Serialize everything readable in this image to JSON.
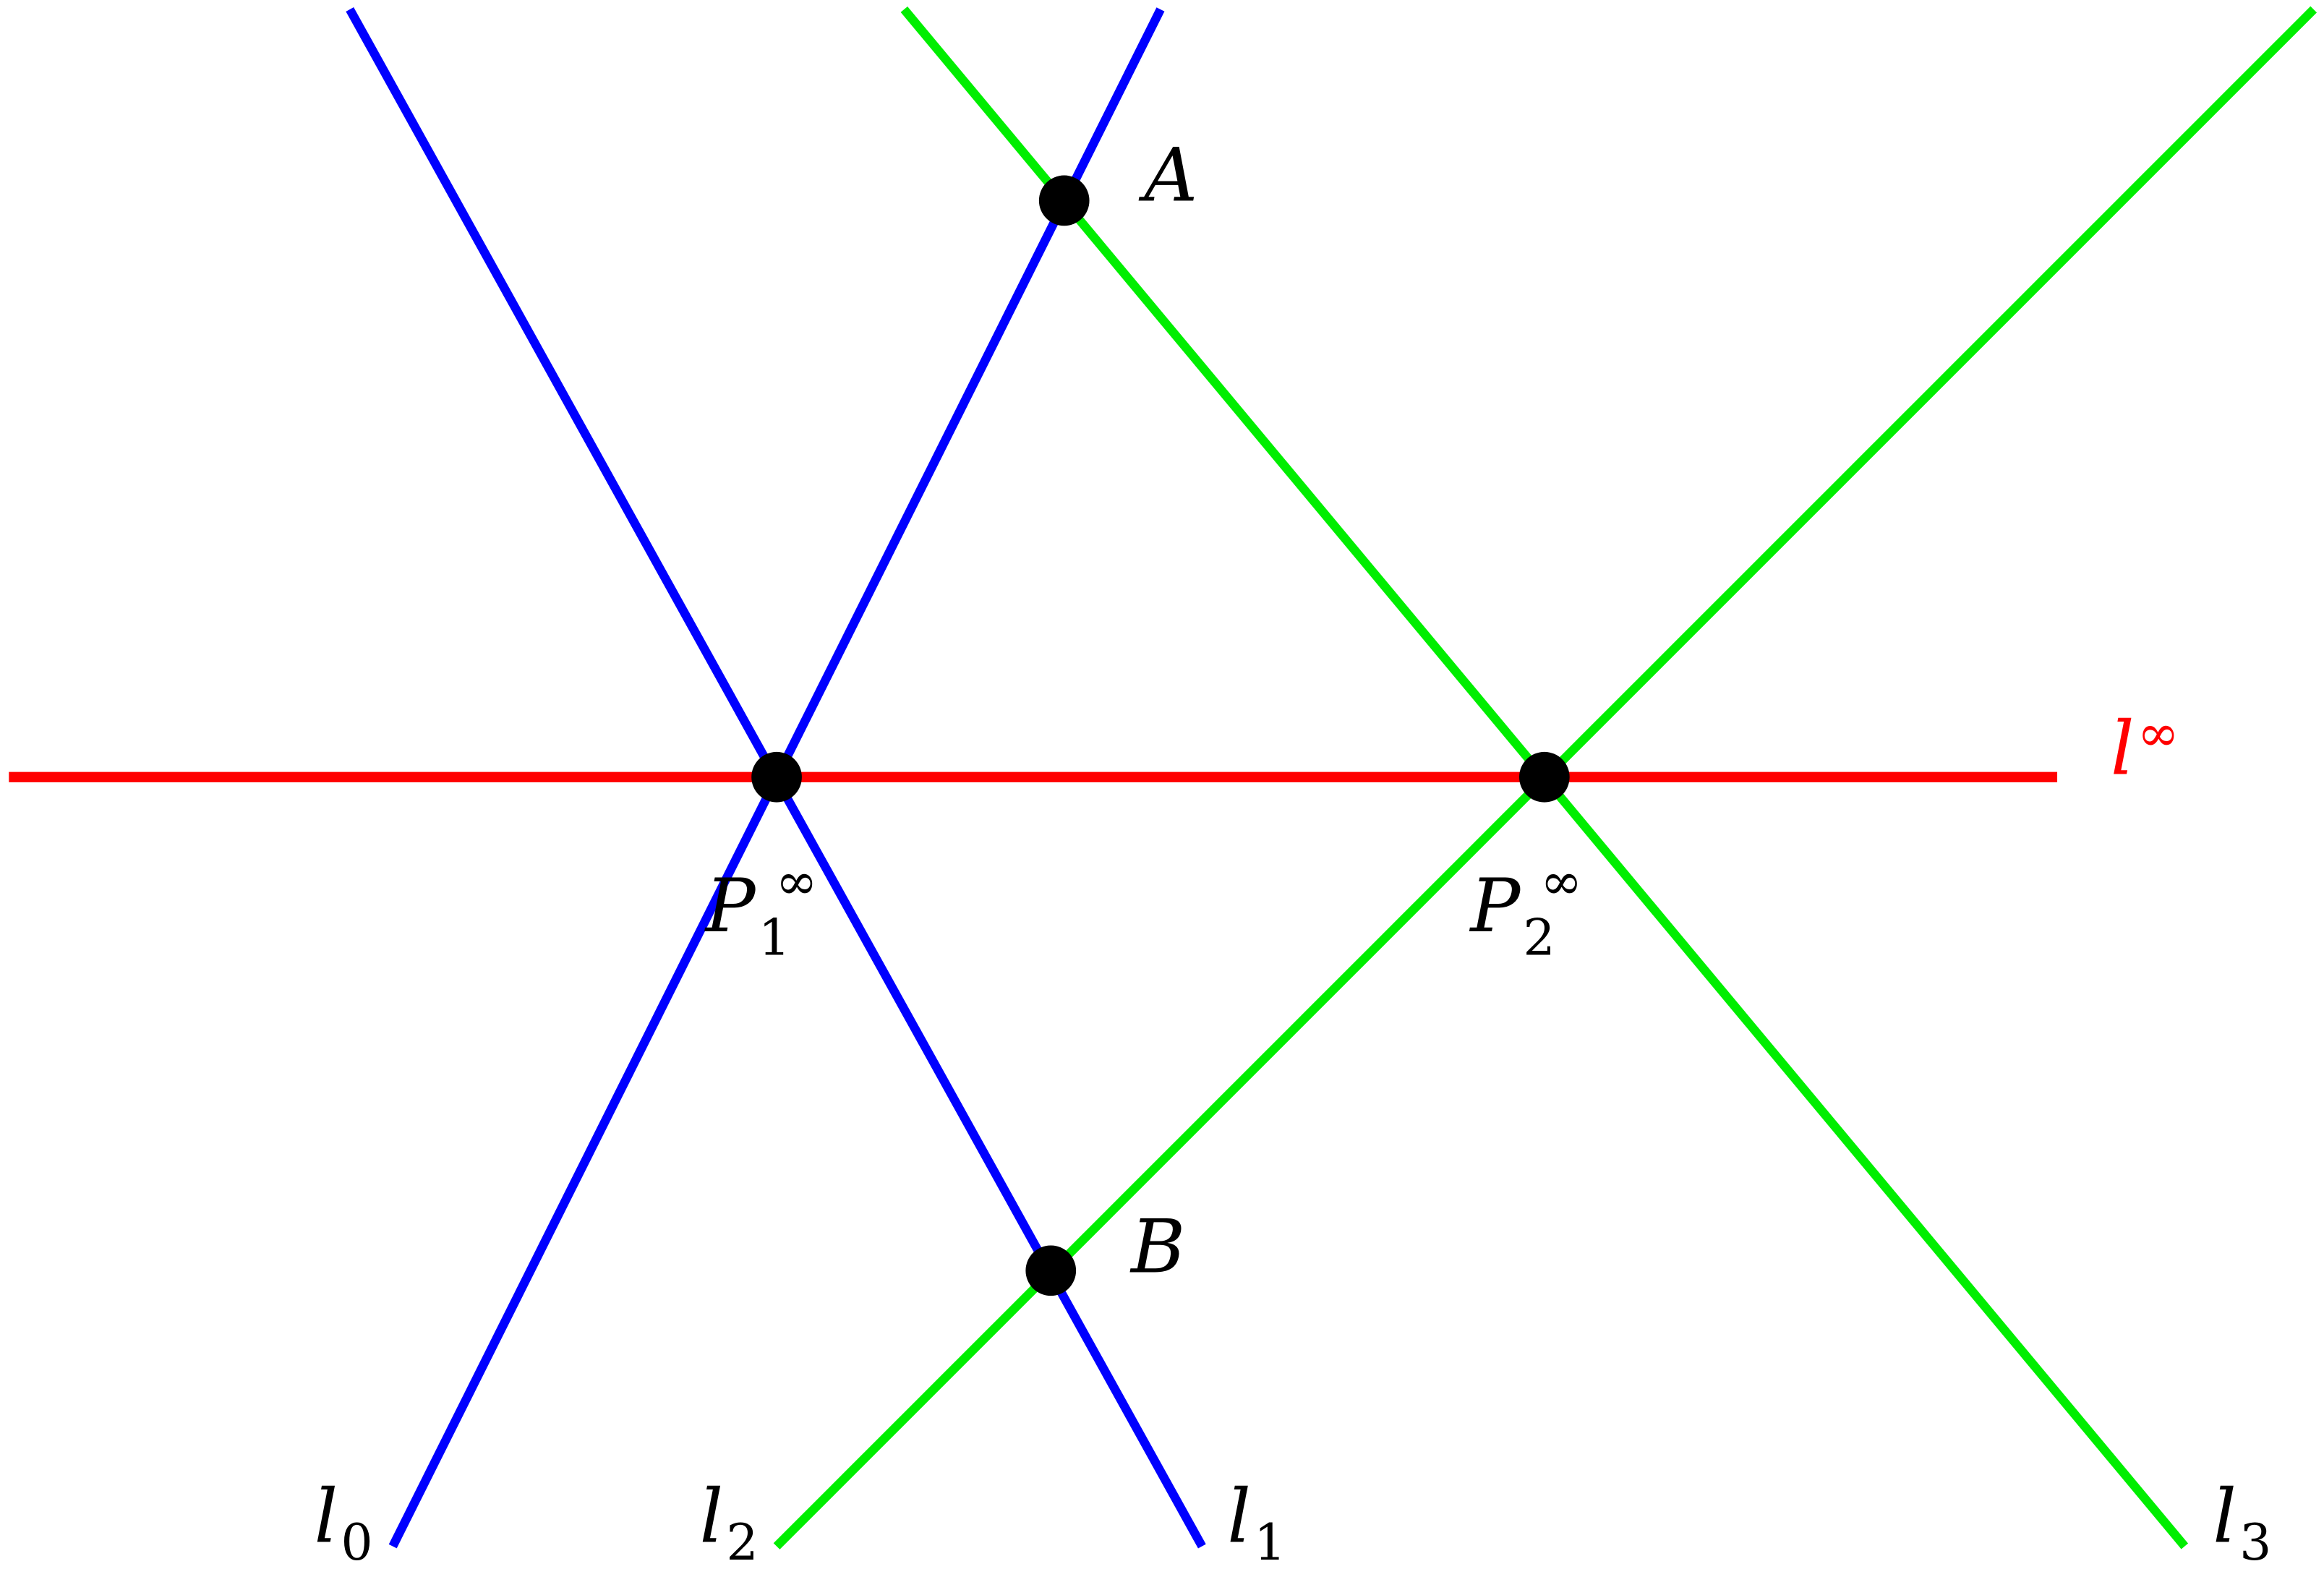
{
  "colors": {
    "line_infinity": "#ff0000",
    "pencil_1": "#0000ff",
    "pencil_2": "#00ee00",
    "points": "#000000"
  },
  "labels": {
    "A": "A",
    "B": "B",
    "P1": {
      "base": "P",
      "sub": "1",
      "sup": "∞"
    },
    "P2": {
      "base": "P",
      "sub": "2",
      "sup": "∞"
    },
    "l_inf": {
      "base": "l",
      "sup": "∞"
    },
    "l0": {
      "base": "l",
      "sub": "0"
    },
    "l1": {
      "base": "l",
      "sub": "1"
    },
    "l2": {
      "base": "l",
      "sub": "2"
    },
    "l3": {
      "base": "l",
      "sub": "3"
    }
  }
}
